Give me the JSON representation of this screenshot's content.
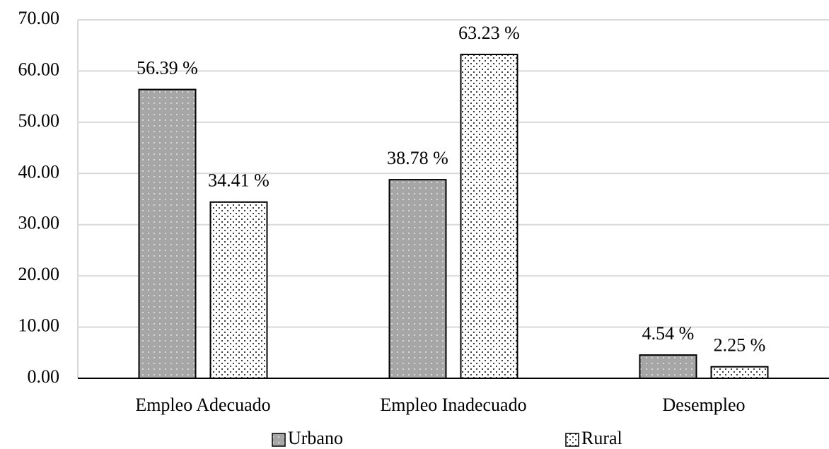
{
  "chart_data": {
    "type": "bar",
    "categories": [
      "Empleo Adecuado",
      "Empleo Inadecuado",
      "Desempleo"
    ],
    "series": [
      {
        "name": "Urbano",
        "color": "#a6a6a6",
        "values": [
          56.39,
          38.78,
          4.54
        ],
        "value_labels": [
          "56.39 %",
          "38.78 %",
          "4.54 %"
        ]
      },
      {
        "name": "Rural",
        "color": "#ffffff",
        "values": [
          34.41,
          63.23,
          2.25
        ],
        "value_labels": [
          "34.41 %",
          "63.23 %",
          "2.25 %"
        ]
      }
    ],
    "ylim": [
      0,
      70
    ],
    "yticks": [
      {
        "value": 0,
        "label": "0.00"
      },
      {
        "value": 10,
        "label": "10.00"
      },
      {
        "value": 20,
        "label": "20.00"
      },
      {
        "value": 30,
        "label": "30.00"
      },
      {
        "value": 40,
        "label": "40.00"
      },
      {
        "value": 50,
        "label": "50.00"
      },
      {
        "value": 60,
        "label": "60.00"
      },
      {
        "value": 70,
        "label": "70.00"
      }
    ],
    "grid": true,
    "legend": "bottom"
  }
}
